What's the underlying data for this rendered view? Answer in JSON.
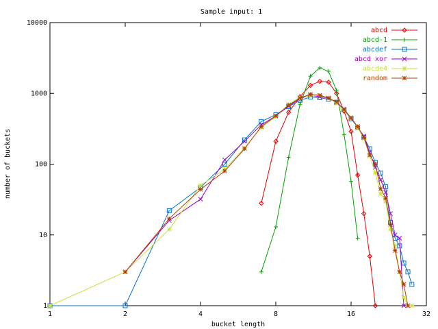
{
  "chart_data": {
    "type": "line",
    "title": "Sample input: 1",
    "xlabel": "bucket length",
    "ylabel": "number of buckets",
    "xscale": "log2",
    "yscale": "log10",
    "xlim": [
      1,
      32
    ],
    "ylim": [
      1,
      10000
    ],
    "grid": false,
    "legend_position": "top-right",
    "x_ticks": [
      1,
      2,
      4,
      8,
      16,
      32
    ],
    "x_tick_labels": [
      "1",
      "2",
      "4",
      "8",
      "16",
      "32"
    ],
    "y_ticks": [
      1,
      10,
      100,
      1000,
      10000
    ],
    "y_tick_labels": [
      "1",
      "10",
      "100",
      "1000",
      "10000"
    ],
    "series": [
      {
        "name": "abcd",
        "color": "#e00000",
        "marker": "diamond",
        "points": [
          [
            7.0,
            28
          ],
          [
            8.0,
            210
          ],
          [
            9.0,
            540
          ],
          [
            10.0,
            900
          ],
          [
            11.0,
            1300
          ],
          [
            12.0,
            1480
          ],
          [
            13.0,
            1440
          ],
          [
            14.0,
            1000
          ],
          [
            15.0,
            560
          ],
          [
            16.0,
            290
          ],
          [
            17.0,
            70
          ],
          [
            18.0,
            20
          ],
          [
            19.0,
            5
          ],
          [
            20.0,
            1
          ]
        ]
      },
      {
        "name": "abcd-1",
        "color": "#00a000",
        "marker": "plus",
        "points": [
          [
            7.0,
            3
          ],
          [
            8.0,
            13
          ],
          [
            9.0,
            125
          ],
          [
            10.0,
            700
          ],
          [
            11.0,
            1750
          ],
          [
            12.0,
            2300
          ],
          [
            13.0,
            2050
          ],
          [
            14.0,
            1100
          ],
          [
            15.0,
            260
          ],
          [
            16.0,
            57
          ],
          [
            17.0,
            9
          ]
        ]
      },
      {
        "name": "abcdef",
        "color": "#0070d0",
        "marker": "square",
        "points": [
          [
            1.0,
            1
          ],
          [
            2.0,
            1
          ],
          [
            3.0,
            22
          ],
          [
            4.0,
            47
          ],
          [
            5.0,
            100
          ],
          [
            6.0,
            220
          ],
          [
            7.0,
            400
          ],
          [
            8.0,
            500
          ],
          [
            9.0,
            650
          ],
          [
            10.0,
            800
          ],
          [
            11.0,
            890
          ],
          [
            12.0,
            870
          ],
          [
            13.0,
            830
          ],
          [
            14.0,
            750
          ],
          [
            15.0,
            580
          ],
          [
            16.0,
            440
          ],
          [
            17.0,
            330
          ],
          [
            18.0,
            240
          ],
          [
            19.0,
            165
          ],
          [
            20.0,
            105
          ],
          [
            21.0,
            75
          ],
          [
            22.0,
            48
          ],
          [
            23.0,
            15
          ],
          [
            24.0,
            9
          ],
          [
            25.0,
            7
          ],
          [
            26.0,
            4
          ],
          [
            27.0,
            3
          ],
          [
            28.0,
            2
          ]
        ]
      },
      {
        "name": "abcd xor",
        "color": "#a000d0",
        "marker": "x",
        "points": [
          [
            2.0,
            3
          ],
          [
            3.0,
            16
          ],
          [
            4.0,
            32
          ],
          [
            5.0,
            115
          ],
          [
            6.0,
            210
          ],
          [
            7.0,
            360
          ],
          [
            8.0,
            480
          ],
          [
            9.0,
            660
          ],
          [
            10.0,
            850
          ],
          [
            11.0,
            940
          ],
          [
            12.0,
            900
          ],
          [
            13.0,
            860
          ],
          [
            14.0,
            740
          ],
          [
            15.0,
            600
          ],
          [
            16.0,
            450
          ],
          [
            17.0,
            330
          ],
          [
            18.0,
            250
          ],
          [
            19.0,
            145
          ],
          [
            20.0,
            90
          ],
          [
            21.0,
            60
          ],
          [
            22.0,
            40
          ],
          [
            23.0,
            20
          ],
          [
            24.0,
            10
          ],
          [
            25.0,
            9
          ],
          [
            26.0,
            1
          ]
        ]
      },
      {
        "name": "abcde4",
        "color": "#c8e040",
        "marker": "star",
        "points": [
          [
            1.0,
            1
          ],
          [
            2.0,
            3
          ],
          [
            3.0,
            12
          ],
          [
            4.0,
            50
          ],
          [
            5.0,
            85
          ],
          [
            6.0,
            170
          ],
          [
            7.0,
            330
          ],
          [
            8.0,
            470
          ],
          [
            9.0,
            700
          ],
          [
            10.0,
            880
          ],
          [
            11.0,
            930
          ],
          [
            12.0,
            930
          ],
          [
            13.0,
            860
          ],
          [
            14.0,
            720
          ],
          [
            15.0,
            580
          ],
          [
            16.0,
            460
          ],
          [
            17.0,
            330
          ],
          [
            18.0,
            230
          ],
          [
            19.0,
            130
          ],
          [
            20.0,
            75
          ],
          [
            21.0,
            38
          ],
          [
            22.0,
            30
          ],
          [
            23.0,
            12
          ],
          [
            24.0,
            7
          ],
          [
            25.0,
            3
          ],
          [
            26.0,
            1.3
          ],
          [
            27.0,
            1
          ],
          [
            28.0,
            1
          ]
        ]
      },
      {
        "name": "random",
        "color": "#b04000",
        "marker": "asterisk",
        "points": [
          [
            2.0,
            3
          ],
          [
            3.0,
            17
          ],
          [
            4.0,
            44
          ],
          [
            5.0,
            80
          ],
          [
            6.0,
            165
          ],
          [
            7.0,
            340
          ],
          [
            8.0,
            480
          ],
          [
            9.0,
            680
          ],
          [
            10.0,
            860
          ],
          [
            11.0,
            970
          ],
          [
            12.0,
            940
          ],
          [
            13.0,
            860
          ],
          [
            14.0,
            760
          ],
          [
            15.0,
            590
          ],
          [
            16.0,
            450
          ],
          [
            17.0,
            340
          ],
          [
            18.0,
            240
          ],
          [
            19.0,
            135
          ],
          [
            20.0,
            100
          ],
          [
            21.0,
            45
          ],
          [
            22.0,
            33
          ],
          [
            23.0,
            14
          ],
          [
            24.0,
            6
          ],
          [
            25.0,
            3
          ],
          [
            26.0,
            2
          ],
          [
            27.0,
            1
          ]
        ]
      }
    ]
  }
}
